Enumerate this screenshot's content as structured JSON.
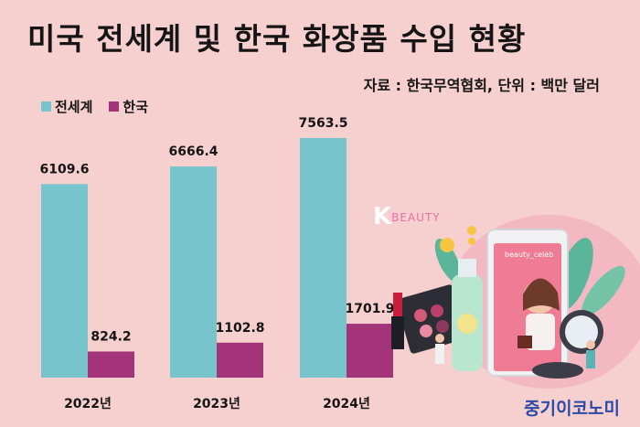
{
  "title": "미국 전세계 및 한국 화장품 수입 현황",
  "source": "자료 : 한국무역협회, 단위 : 백만 달러",
  "brand": "중기이코노미",
  "illustration": {
    "logo_k": "K",
    "logo_text": "BEAUTY",
    "phone_label": "beauty_celeb"
  },
  "colors": {
    "world": "#77c4cc",
    "korea": "#a43479",
    "background": "#f6cfcf",
    "brand": "#2a4aa8"
  },
  "chart_data": {
    "type": "bar",
    "categories": [
      "2022년",
      "2023년",
      "2024년"
    ],
    "series": [
      {
        "name": "전세계",
        "values": [
          6109.6,
          6666.4,
          7563.5
        ],
        "labels": [
          "6109.6",
          "6666.4",
          "7563.5"
        ]
      },
      {
        "name": "한국",
        "values": [
          824.2,
          1102.8,
          1701.9
        ],
        "labels": [
          "824.2",
          "1102.8",
          "1701.9"
        ]
      }
    ],
    "title": "미국 전세계 및 한국 화장품 수입 현황",
    "xlabel": "",
    "ylabel": "",
    "ylim": [
      0,
      7563.5
    ],
    "grid": false,
    "legend": "top-left"
  }
}
